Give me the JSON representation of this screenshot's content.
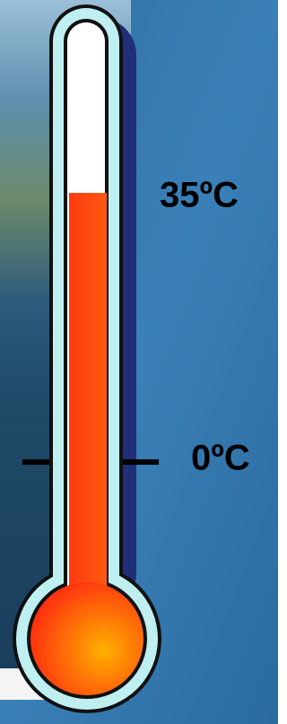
{
  "labels": [
    "35ºC",
    "0ºC"
  ]
}
